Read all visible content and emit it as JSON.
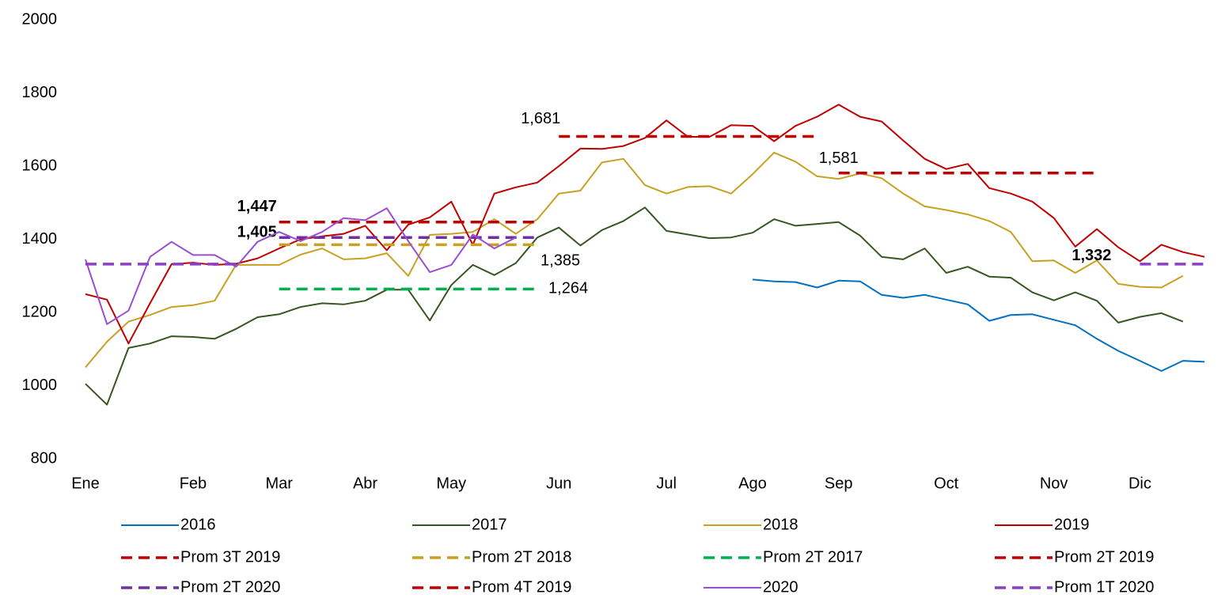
{
  "chart_data": {
    "type": "line",
    "categories": [
      "Ene",
      null,
      null,
      null,
      null,
      "Feb",
      null,
      null,
      null,
      "Mar",
      null,
      null,
      null,
      "Abr",
      null,
      null,
      null,
      "May",
      null,
      null,
      null,
      null,
      "Jun",
      null,
      null,
      null,
      null,
      "Jul",
      null,
      null,
      null,
      "Ago",
      null,
      null,
      null,
      "Sep",
      null,
      null,
      null,
      null,
      "Oct",
      null,
      null,
      null,
      null,
      "Nov",
      null,
      null,
      null,
      "Dic",
      null,
      null,
      null
    ],
    "ylim": [
      800,
      2000
    ],
    "yticks": [
      800,
      1000,
      1200,
      1400,
      1600,
      1800,
      2000
    ],
    "grid": false,
    "series": [
      {
        "name": "2016",
        "color": "#0070c0",
        "dashed": false,
        "values": [
          null,
          null,
          null,
          null,
          null,
          null,
          null,
          null,
          null,
          null,
          null,
          null,
          null,
          null,
          null,
          null,
          null,
          null,
          null,
          null,
          null,
          null,
          null,
          null,
          null,
          null,
          null,
          null,
          null,
          null,
          null,
          1290,
          1285,
          1283,
          1268,
          1287,
          1285,
          1248,
          1240,
          1248,
          1235,
          1222,
          1177,
          1193,
          1195,
          1180,
          1165,
          1128,
          1095,
          1068,
          1040,
          1068,
          1065
        ]
      },
      {
        "name": "2017",
        "color": "#375623",
        "dashed": false,
        "values": [
          1005,
          948,
          1103,
          1115,
          1135,
          1133,
          1128,
          1155,
          1187,
          1195,
          1215,
          1225,
          1222,
          1232,
          1262,
          1262,
          1178,
          1275,
          1330,
          1302,
          1335,
          1405,
          1432,
          1383,
          1425,
          1450,
          1487,
          1423,
          1413,
          1403,
          1405,
          1418,
          1455,
          1437,
          1442,
          1447,
          1410,
          1352,
          1345,
          1375,
          1308,
          1325,
          1298,
          1295,
          1255,
          1233,
          1255,
          1232,
          1172,
          1188,
          1198,
          1175,
          null
        ]
      },
      {
        "name": "2018",
        "color": "#c9a022",
        "dashed": false,
        "values": [
          1050,
          1120,
          1175,
          1193,
          1215,
          1220,
          1232,
          1330,
          1330,
          1330,
          1358,
          1375,
          1345,
          1348,
          1362,
          1300,
          1412,
          1415,
          1420,
          1455,
          1415,
          1455,
          1525,
          1533,
          1610,
          1620,
          1548,
          1525,
          1543,
          1545,
          1525,
          1578,
          1637,
          1612,
          1572,
          1565,
          1580,
          1567,
          1525,
          1490,
          1480,
          1468,
          1450,
          1420,
          1340,
          1342,
          1308,
          1342,
          1278,
          1270,
          1268,
          1300,
          null
        ]
      },
      {
        "name": "2019",
        "color": "#c00000",
        "dashed": false,
        "values": [
          1250,
          1235,
          1115,
          1225,
          1332,
          1336,
          1330,
          1333,
          1348,
          1375,
          1400,
          1408,
          1415,
          1437,
          1370,
          1440,
          1460,
          1503,
          1385,
          1525,
          1542,
          1555,
          1600,
          1648,
          1647,
          1655,
          1677,
          1725,
          1680,
          1680,
          1712,
          1710,
          1668,
          1710,
          1735,
          1768,
          1735,
          1722,
          1670,
          1620,
          1592,
          1606,
          1540,
          1525,
          1503,
          1458,
          1380,
          1428,
          1378,
          1340,
          1385,
          1365,
          1352
        ]
      },
      {
        "name": "Prom 3T 2019",
        "color": "#c00000",
        "dashed": true,
        "values": [
          null,
          null,
          null,
          null,
          null,
          null,
          null,
          null,
          null,
          null,
          null,
          null,
          null,
          null,
          null,
          null,
          null,
          null,
          null,
          null,
          null,
          null,
          1681,
          1681,
          1681,
          1681,
          1681,
          1681,
          1681,
          1681,
          1681,
          1681,
          1681,
          1681,
          1681,
          null,
          null,
          null,
          null,
          null,
          null,
          null,
          null,
          null,
          null,
          null,
          null,
          null,
          null,
          null,
          null,
          null,
          null
        ],
        "value_labels": [
          null,
          null,
          null,
          null,
          null,
          null,
          null,
          null,
          null,
          null,
          null,
          null,
          null,
          null,
          null,
          null,
          null,
          null,
          null,
          null,
          null,
          null,
          "1,681",
          null,
          null,
          null,
          null,
          null,
          null,
          null,
          null,
          null,
          null,
          null,
          null,
          null,
          null,
          null,
          null,
          null,
          null,
          null,
          null,
          null,
          null,
          null,
          null,
          null,
          null,
          null,
          null,
          null,
          null
        ]
      },
      {
        "name": "Prom 2T 2018",
        "color": "#c9a022",
        "dashed": true,
        "values": [
          null,
          null,
          null,
          null,
          null,
          null,
          null,
          null,
          null,
          1385,
          1385,
          1385,
          1385,
          1385,
          1385,
          1385,
          1385,
          1385,
          1385,
          1385,
          1385,
          1385,
          null,
          null,
          null,
          null,
          null,
          null,
          null,
          null,
          null,
          null,
          null,
          null,
          null,
          null,
          null,
          null,
          null,
          null,
          null,
          null,
          null,
          null,
          null,
          null,
          null,
          null,
          null,
          null,
          null,
          null,
          null
        ],
        "value_labels": [
          null,
          null,
          null,
          null,
          null,
          null,
          null,
          null,
          null,
          null,
          null,
          null,
          null,
          null,
          null,
          null,
          null,
          null,
          null,
          null,
          null,
          "1,385",
          null,
          null,
          null,
          null,
          null,
          null,
          null,
          null,
          null,
          null,
          null,
          null,
          null,
          null,
          null,
          null,
          null,
          null,
          null,
          null,
          null,
          null,
          null,
          null,
          null,
          null,
          null,
          null,
          null,
          null,
          null
        ]
      },
      {
        "name": "Prom 2T 2017",
        "color": "#00b050",
        "dashed": true,
        "values": [
          null,
          null,
          null,
          null,
          null,
          null,
          null,
          null,
          null,
          1264,
          1264,
          1264,
          1264,
          1264,
          1264,
          1264,
          1264,
          1264,
          1264,
          1264,
          1264,
          1264,
          null,
          null,
          null,
          null,
          null,
          null,
          null,
          null,
          null,
          null,
          null,
          null,
          null,
          null,
          null,
          null,
          null,
          null,
          null,
          null,
          null,
          null,
          null,
          null,
          null,
          null,
          null,
          null,
          null,
          null,
          null
        ],
        "value_labels": [
          null,
          null,
          null,
          null,
          null,
          null,
          null,
          null,
          null,
          null,
          null,
          null,
          null,
          null,
          null,
          null,
          null,
          null,
          null,
          null,
          null,
          "1,264",
          null,
          null,
          null,
          null,
          null,
          null,
          null,
          null,
          null,
          null,
          null,
          null,
          null,
          null,
          null,
          null,
          null,
          null,
          null,
          null,
          null,
          null,
          null,
          null,
          null,
          null,
          null,
          null,
          null,
          null,
          null
        ]
      },
      {
        "name": "Prom 2T 2019",
        "color": "#c00000",
        "dashed": true,
        "values": [
          null,
          null,
          null,
          null,
          null,
          null,
          null,
          null,
          null,
          1447,
          1447,
          1447,
          1447,
          1447,
          1447,
          1447,
          1447,
          1447,
          1447,
          1447,
          1447,
          1447,
          null,
          null,
          null,
          null,
          null,
          null,
          null,
          null,
          null,
          null,
          null,
          null,
          null,
          null,
          null,
          null,
          null,
          null,
          null,
          null,
          null,
          null,
          null,
          null,
          null,
          null,
          null,
          null,
          null,
          null,
          null
        ],
        "value_labels": [
          null,
          null,
          null,
          null,
          null,
          null,
          null,
          null,
          null,
          "1,447",
          null,
          null,
          null,
          null,
          null,
          null,
          null,
          null,
          null,
          null,
          null,
          null,
          null,
          null,
          null,
          null,
          null,
          null,
          null,
          null,
          null,
          null,
          null,
          null,
          null,
          null,
          null,
          null,
          null,
          null,
          null,
          null,
          null,
          null,
          null,
          null,
          null,
          null,
          null,
          null,
          null,
          null,
          null
        ]
      },
      {
        "name": "Prom 2T 2020",
        "color": "#7030a0",
        "dashed": true,
        "values": [
          null,
          null,
          null,
          null,
          null,
          null,
          null,
          null,
          null,
          1405,
          1405,
          1405,
          1405,
          1405,
          1405,
          1405,
          1405,
          1405,
          1405,
          1405,
          1405,
          1405,
          null,
          null,
          null,
          null,
          null,
          null,
          null,
          null,
          null,
          null,
          null,
          null,
          null,
          null,
          null,
          null,
          null,
          null,
          null,
          null,
          null,
          null,
          null,
          null,
          null,
          null,
          null,
          null,
          null,
          null,
          null
        ],
        "value_labels": [
          null,
          null,
          null,
          null,
          null,
          null,
          null,
          null,
          null,
          "1,405",
          null,
          null,
          null,
          null,
          null,
          null,
          null,
          null,
          null,
          null,
          null,
          null,
          null,
          null,
          null,
          null,
          null,
          null,
          null,
          null,
          null,
          null,
          null,
          null,
          null,
          null,
          null,
          null,
          null,
          null,
          null,
          null,
          null,
          null,
          null,
          null,
          null,
          null,
          null,
          null,
          null,
          null,
          null
        ]
      },
      {
        "name": "Prom 4T 2019",
        "color": "#c00000",
        "dashed": true,
        "values": [
          null,
          null,
          null,
          null,
          null,
          null,
          null,
          null,
          null,
          null,
          null,
          null,
          null,
          null,
          null,
          null,
          null,
          null,
          null,
          null,
          null,
          null,
          null,
          null,
          null,
          null,
          null,
          null,
          null,
          null,
          null,
          null,
          null,
          null,
          null,
          1581,
          1581,
          1581,
          1581,
          1581,
          1581,
          1581,
          1581,
          1581,
          1581,
          1581,
          1581,
          1581,
          null,
          null,
          null,
          null,
          null
        ],
        "value_labels": [
          null,
          null,
          null,
          null,
          null,
          null,
          null,
          null,
          null,
          null,
          null,
          null,
          null,
          null,
          null,
          null,
          null,
          null,
          null,
          null,
          null,
          null,
          null,
          null,
          null,
          null,
          null,
          null,
          null,
          null,
          null,
          null,
          null,
          null,
          null,
          "1,581",
          null,
          null,
          null,
          null,
          null,
          null,
          null,
          null,
          null,
          null,
          null,
          null,
          null,
          null,
          null,
          null,
          null
        ]
      },
      {
        "name": "2020",
        "color": "#9b4fd0",
        "dashed": false,
        "values": [
          1345,
          1168,
          1205,
          1352,
          1393,
          1357,
          1357,
          1325,
          1393,
          1420,
          1395,
          1420,
          1458,
          1452,
          1485,
          1395,
          1310,
          1330,
          1413,
          1375,
          1405,
          null,
          null,
          null,
          null,
          null,
          null,
          null,
          null,
          null,
          null,
          null,
          null,
          null,
          null,
          null,
          null,
          null,
          null,
          null,
          null,
          null,
          null,
          null,
          null,
          null,
          null,
          null,
          null,
          null,
          null,
          null,
          null
        ]
      },
      {
        "name": "Prom 1T 2020",
        "color": "#8a3fc4",
        "dashed": true,
        "values": [
          1332,
          1332,
          1332,
          1332,
          1332,
          1332,
          1332,
          1332,
          null,
          null,
          null,
          null,
          null,
          null,
          null,
          null,
          null,
          null,
          null,
          null,
          null,
          null,
          null,
          null,
          null,
          null,
          null,
          null,
          null,
          null,
          null,
          null,
          null,
          null,
          null,
          null,
          null,
          null,
          null,
          null,
          null,
          null,
          null,
          null,
          null,
          null,
          null,
          null,
          null,
          1332,
          1332,
          1332,
          1332
        ],
        "value_labels": [
          null,
          null,
          null,
          null,
          null,
          null,
          null,
          null,
          null,
          null,
          null,
          null,
          null,
          null,
          null,
          null,
          null,
          null,
          null,
          null,
          null,
          null,
          null,
          null,
          null,
          null,
          null,
          null,
          null,
          null,
          null,
          null,
          null,
          null,
          null,
          null,
          null,
          null,
          null,
          null,
          null,
          null,
          null,
          null,
          null,
          null,
          null,
          null,
          null,
          "1,332",
          null,
          null,
          null
        ]
      }
    ]
  }
}
